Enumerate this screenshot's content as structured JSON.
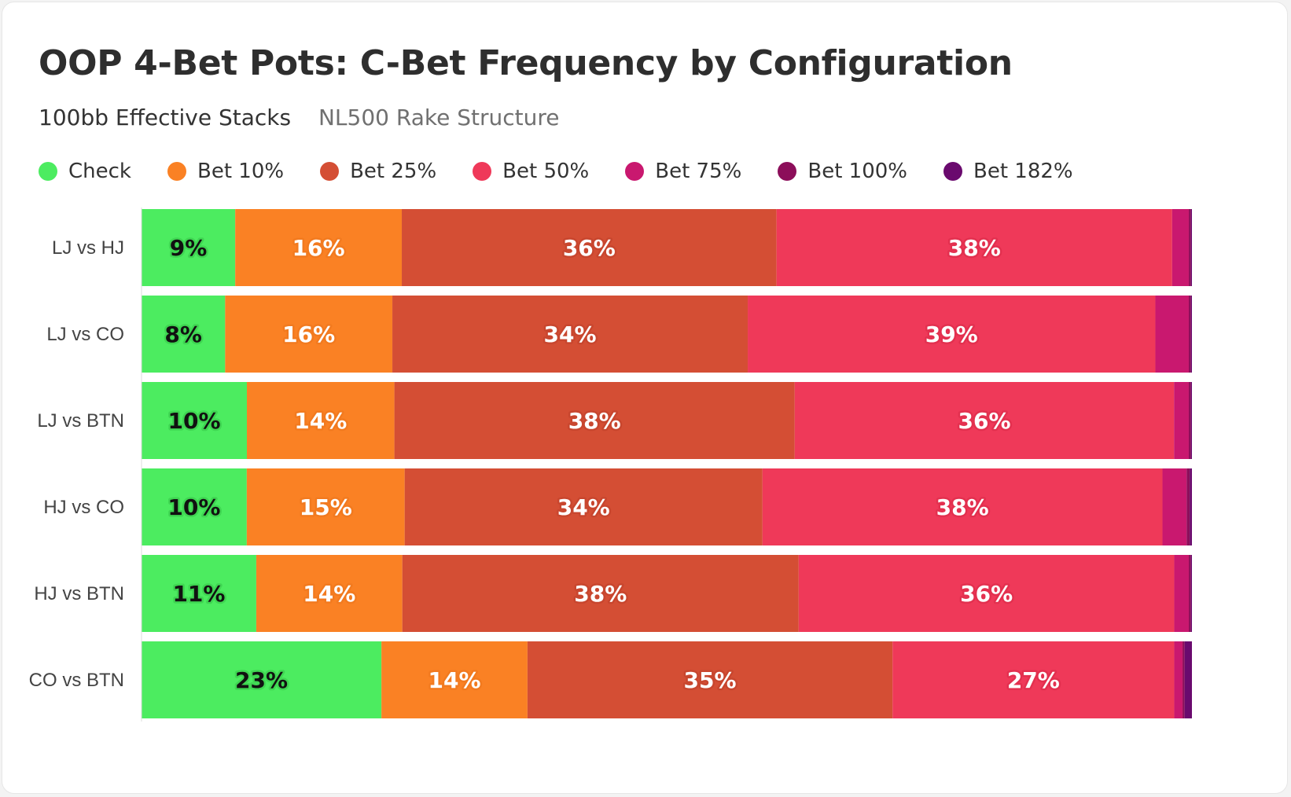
{
  "title": "OOP 4-Bet Pots: C-Bet Frequency by Configuration",
  "subtitle": "100bb Effective Stacks",
  "subtitle_note": "NL500 Rake Structure",
  "legend": [
    {
      "label": "Check",
      "color": "#4cec60"
    },
    {
      "label": "Bet 10%",
      "color": "#fa8124"
    },
    {
      "label": "Bet 25%",
      "color": "#d44e34"
    },
    {
      "label": "Bet 50%",
      "color": "#ef3959"
    },
    {
      "label": "Bet 75%",
      "color": "#c9186f"
    },
    {
      "label": "Bet 100%",
      "color": "#8c0e5a"
    },
    {
      "label": "Bet 182%",
      "color": "#6a0a6e"
    }
  ],
  "chart_data": {
    "type": "bar",
    "orientation": "horizontal",
    "stacked": true,
    "normalized": true,
    "title": "OOP 4-Bet Pots: C-Bet Frequency by Configuration",
    "subtitle": "100bb Effective Stacks",
    "categories": [
      "LJ vs HJ",
      "LJ vs CO",
      "LJ vs BTN",
      "HJ vs CO",
      "HJ vs BTN",
      "CO vs BTN"
    ],
    "series": [
      {
        "name": "Check",
        "color": "#4cec60",
        "label_color": "#111111",
        "label_stroke": "#3fd652",
        "values": [
          9,
          8,
          10,
          10,
          11,
          23
        ]
      },
      {
        "name": "Bet 10%",
        "color": "#fa8124",
        "label_color": "#ffffff",
        "label_stroke": "#f27a1f",
        "values": [
          16,
          16,
          14,
          15,
          14,
          14
        ]
      },
      {
        "name": "Bet 25%",
        "color": "#d44e34",
        "label_color": "#ffffff",
        "label_stroke": "#c8462e",
        "values": [
          36,
          34,
          38,
          34,
          38,
          35
        ]
      },
      {
        "name": "Bet 50%",
        "color": "#ef3959",
        "label_color": "#ffffff",
        "label_stroke": "#e3304f",
        "values": [
          38,
          39,
          36,
          38,
          36,
          27
        ]
      },
      {
        "name": "Bet 75%",
        "color": "#c9186f",
        "label_color": "#ffffff",
        "label_stroke": "#c9186f",
        "values": [
          1.6,
          3.2,
          1.4,
          2.3,
          1.4,
          0.8
        ]
      },
      {
        "name": "Bet 100%",
        "color": "#8c0e5a",
        "label_color": "#ffffff",
        "label_stroke": "#8c0e5a",
        "values": [
          0.2,
          0.2,
          0.2,
          0.3,
          0.2,
          0.2
        ]
      },
      {
        "name": "Bet 182%",
        "color": "#6a0a6e",
        "label_color": "#ffffff",
        "label_stroke": "#6a0a6e",
        "values": [
          0.1,
          0.1,
          0.1,
          0.2,
          0.1,
          0.7
        ]
      }
    ],
    "label_min_value": 5,
    "xlim": [
      0,
      100
    ],
    "grid": false,
    "legend_position": "top-left"
  }
}
